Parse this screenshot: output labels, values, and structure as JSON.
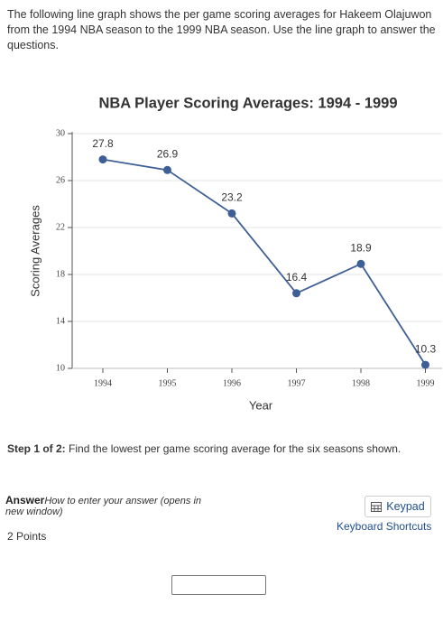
{
  "intro": "The following line graph shows the per game scoring averages for Hakeem Olajuwon from the 1994 NBA season to the 1999 NBA season. Use the line graph to answer the questions.",
  "chart_data": {
    "type": "line",
    "title": "NBA Player Scoring Averages: 1994 - 1999",
    "xlabel": "Year",
    "ylabel": "Scoring Averages",
    "categories": [
      "1994",
      "1995",
      "1996",
      "1997",
      "1998",
      "1999"
    ],
    "values": [
      27.8,
      26.9,
      23.2,
      16.4,
      18.9,
      10.3
    ],
    "color": "#3e5f96",
    "ylim": [
      10,
      30
    ],
    "yticks": [
      10,
      14,
      18,
      22,
      26,
      30
    ],
    "grid": true
  },
  "step": {
    "label": "Step 1 of 2:",
    "text": "Find the lowest per game scoring average for the six seasons shown."
  },
  "answer": {
    "label": "Answer",
    "help": "How to enter your answer (opens in new window)",
    "points": "2 Points",
    "keypad": "Keypad",
    "shortcuts": "Keyboard Shortcuts"
  }
}
